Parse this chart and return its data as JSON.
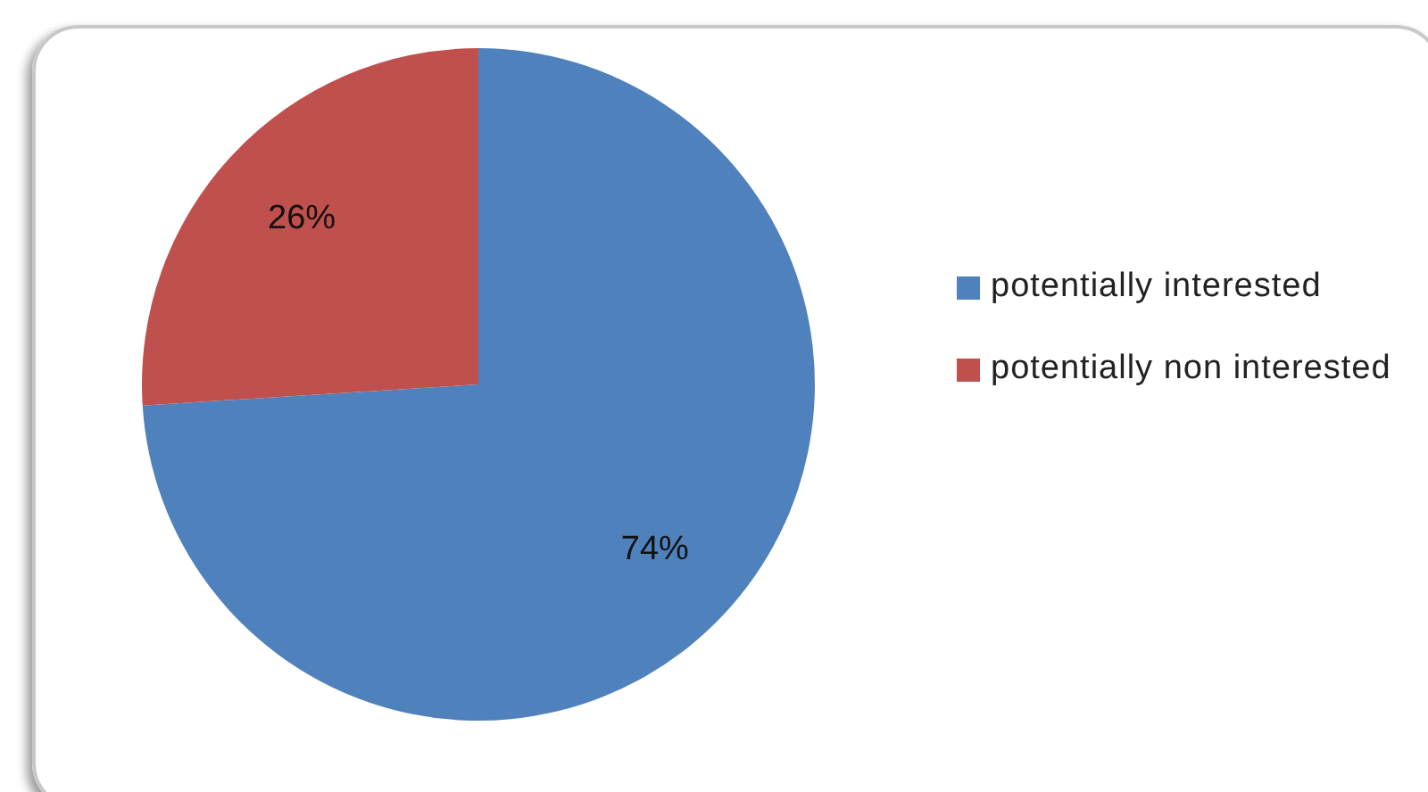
{
  "chart_data": {
    "type": "pie",
    "categories": [
      "potentially interested",
      "potentially non interested"
    ],
    "values": [
      74,
      26
    ],
    "colors": [
      "#4f81bd",
      "#c0504d"
    ],
    "value_labels": [
      "74%",
      "26%"
    ],
    "legend": "right"
  }
}
